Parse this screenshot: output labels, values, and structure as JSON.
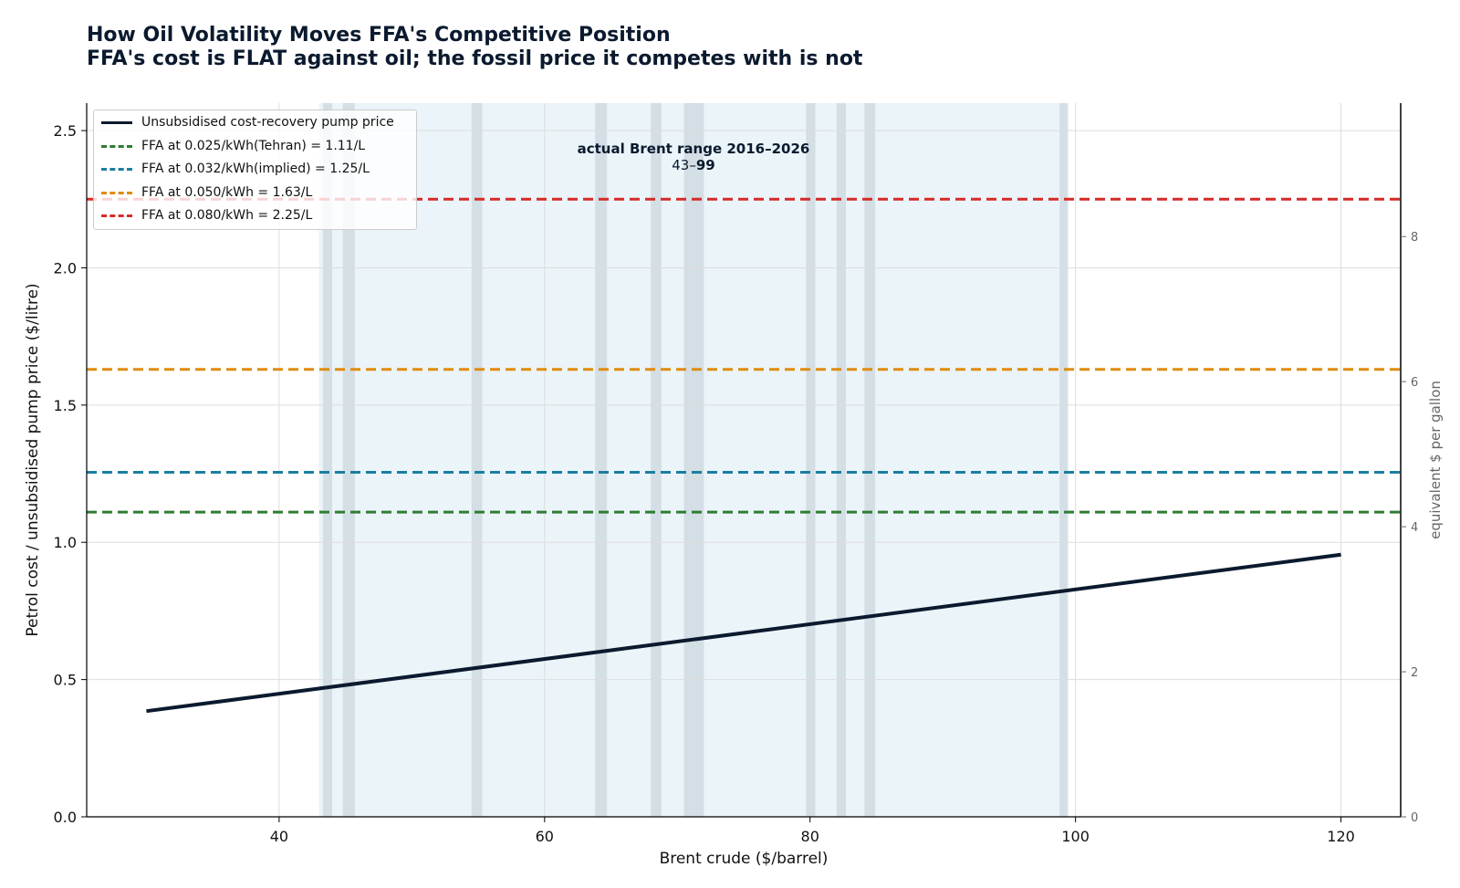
{
  "title": "How Oil Volatility Moves FFA's Competitive Position",
  "subtitle": "FFA's cost is FLAT against oil; the fossil price it competes with is not",
  "chart_data": {
    "type": "line",
    "xlabel": "Brent crude ($/barrel)",
    "ylabel": "Petrol cost / unsubsidised pump price ($/litre)",
    "y2label": "equivalent $ per gallon",
    "xlim": [
      25.5,
      124.5
    ],
    "ylim": [
      0,
      2.6
    ],
    "y2lim": [
      0,
      9.84
    ],
    "xticks": [
      40,
      60,
      80,
      100,
      120
    ],
    "yticks": [
      0.0,
      0.5,
      1.0,
      1.5,
      2.0,
      2.5
    ],
    "ytick_labels": [
      "0.0",
      "0.5",
      "1.0",
      "1.5",
      "2.0",
      "2.5"
    ],
    "y2ticks": [
      0,
      2,
      4,
      6,
      8
    ],
    "grid": true,
    "legend_position": "top-left",
    "series": [
      {
        "name": "Unsubsidised cost-recovery pump price",
        "style": "solid",
        "color": "#0b1a2e",
        "x": [
          30,
          120
        ],
        "y": [
          0.385,
          0.955
        ]
      },
      {
        "name": "FFA at 0.025/kWh(Tehran) = 1.11/L",
        "style": "dashed",
        "color": "#2e7d32",
        "x": [
          25.5,
          124.5
        ],
        "y": [
          1.11,
          1.11
        ]
      },
      {
        "name": "FFA at 0.032/kWh(implied) = 1.25/L",
        "style": "dashed",
        "color": "#1a7fa0",
        "x": [
          25.5,
          124.5
        ],
        "y": [
          1.255,
          1.255
        ]
      },
      {
        "name": "FFA at 0.050/kWh = 1.63/L",
        "style": "dashed",
        "color": "#e08b10",
        "x": [
          25.5,
          124.5
        ],
        "y": [
          1.63,
          1.63
        ]
      },
      {
        "name": "FFA at 0.080/kWh = 2.25/L",
        "style": "dashed",
        "color": "#d62a2a",
        "x": [
          25.5,
          124.5
        ],
        "y": [
          2.25,
          2.25
        ]
      }
    ],
    "shaded_range": {
      "x": [
        43,
        99.5
      ],
      "color": "#deedf5"
    },
    "yearly_markers": [
      {
        "x": [
          43.3,
          44.0
        ]
      },
      {
        "x": [
          44.8,
          45.7
        ]
      },
      {
        "x": [
          54.5,
          55.3
        ]
      },
      {
        "x": [
          63.8,
          64.7
        ]
      },
      {
        "x": [
          68.0,
          68.8
        ]
      },
      {
        "x": [
          70.5,
          72.0
        ]
      },
      {
        "x": [
          79.7,
          80.4
        ]
      },
      {
        "x": [
          82.0,
          82.7
        ]
      },
      {
        "x": [
          84.1,
          84.9
        ]
      },
      {
        "x": [
          98.8,
          99.4
        ]
      }
    ],
    "annotation": {
      "title": "actual Brent range 2016–2026",
      "range_text": "43–",
      "range_bold": "99",
      "x": 71,
      "y": 2.33
    }
  }
}
